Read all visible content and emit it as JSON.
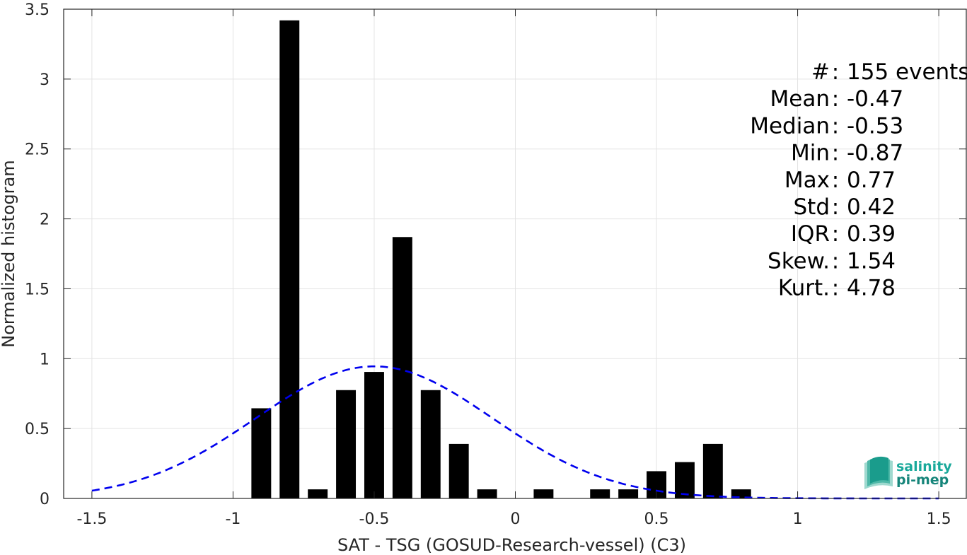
{
  "chart_data": {
    "type": "bar",
    "xlabel": "SAT - TSG (GOSUD-Research-vessel) (C3)",
    "ylabel": "Normalized histogram",
    "xlim": [
      -1.6,
      1.6
    ],
    "ylim": [
      0,
      3.5
    ],
    "xticks": [
      -1.5,
      -1,
      -0.5,
      0,
      0.5,
      1,
      1.5
    ],
    "xtick_labels": [
      "-1.5",
      "-1",
      "-0.5",
      "0",
      "0.5",
      "1",
      "1.5"
    ],
    "yticks": [
      0,
      0.5,
      1,
      1.5,
      2,
      2.5,
      3,
      3.5
    ],
    "ytick_labels": [
      "0",
      "0.5",
      "1",
      "1.5",
      "2",
      "2.5",
      "3",
      "3.5"
    ],
    "grid": true,
    "bar_width": 0.07,
    "bar_color": "#000000",
    "bars": [
      {
        "x": -0.9,
        "value": 0.645
      },
      {
        "x": -0.8,
        "value": 3.42
      },
      {
        "x": -0.7,
        "value": 0.065
      },
      {
        "x": -0.6,
        "value": 0.775
      },
      {
        "x": -0.5,
        "value": 0.905
      },
      {
        "x": -0.4,
        "value": 1.87
      },
      {
        "x": -0.3,
        "value": 0.775
      },
      {
        "x": -0.2,
        "value": 0.39
      },
      {
        "x": -0.1,
        "value": 0.065
      },
      {
        "x": 0.1,
        "value": 0.065
      },
      {
        "x": 0.3,
        "value": 0.065
      },
      {
        "x": 0.4,
        "value": 0.065
      },
      {
        "x": 0.5,
        "value": 0.195
      },
      {
        "x": 0.6,
        "value": 0.26
      },
      {
        "x": 0.7,
        "value": 0.39
      },
      {
        "x": 0.8,
        "value": 0.065
      }
    ],
    "fit_curve": {
      "style": "dashed",
      "color": "#0000ee",
      "mean": -0.5,
      "std": 0.42,
      "peak": 0.945,
      "x_range": [
        -1.5,
        1.5
      ]
    },
    "stats": [
      {
        "label": "#  ",
        "value": "155 events"
      },
      {
        "label": "Mean ",
        "value": "-0.47"
      },
      {
        "label": "Median ",
        "value": "-0.53"
      },
      {
        "label": "Min ",
        "value": "-0.87"
      },
      {
        "label": "Max ",
        "value": "0.77"
      },
      {
        "label": "Std ",
        "value": "0.42"
      },
      {
        "label": "IQR ",
        "value": "0.39"
      },
      {
        "label": "Skew. ",
        "value": "1.54"
      },
      {
        "label": "Kurt. ",
        "value": "4.78"
      }
    ]
  },
  "logo": {
    "line1": "salinity",
    "line2": "pi-mep",
    "color_top": "#1aa99b",
    "color_bottom": "#16857a"
  }
}
